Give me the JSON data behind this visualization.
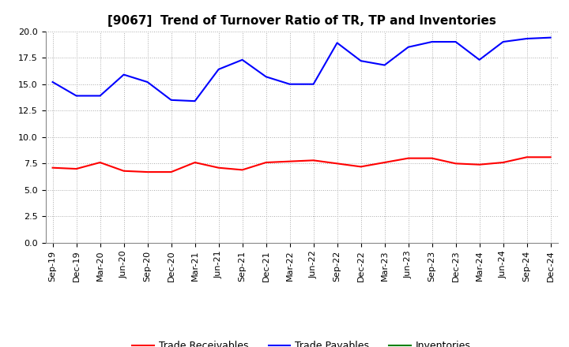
{
  "title": "[9067]  Trend of Turnover Ratio of TR, TP and Inventories",
  "x_labels": [
    "Sep-19",
    "Dec-19",
    "Mar-20",
    "Jun-20",
    "Sep-20",
    "Dec-20",
    "Mar-21",
    "Jun-21",
    "Sep-21",
    "Dec-21",
    "Mar-22",
    "Jun-22",
    "Sep-22",
    "Dec-22",
    "Mar-23",
    "Jun-23",
    "Sep-23",
    "Dec-23",
    "Mar-24",
    "Jun-24",
    "Sep-24",
    "Dec-24"
  ],
  "trade_receivables": [
    7.1,
    7.0,
    7.6,
    6.8,
    6.7,
    6.7,
    7.6,
    7.1,
    6.9,
    7.6,
    7.7,
    7.8,
    7.5,
    7.2,
    7.6,
    8.0,
    8.0,
    7.5,
    7.4,
    7.6,
    8.1,
    8.1
  ],
  "trade_payables": [
    15.2,
    13.9,
    13.9,
    15.9,
    15.2,
    13.5,
    13.4,
    16.4,
    17.3,
    15.7,
    15.0,
    15.0,
    18.9,
    17.2,
    16.8,
    18.5,
    19.0,
    19.0,
    17.3,
    19.0,
    19.3,
    19.4
  ],
  "inventories": [
    null,
    null,
    null,
    null,
    null,
    null,
    null,
    null,
    null,
    null,
    null,
    null,
    null,
    null,
    null,
    null,
    null,
    null,
    null,
    null,
    null,
    null
  ],
  "tr_color": "#ff0000",
  "tp_color": "#0000ff",
  "inv_color": "#008000",
  "ylim": [
    0.0,
    20.0
  ],
  "yticks": [
    0.0,
    2.5,
    5.0,
    7.5,
    10.0,
    12.5,
    15.0,
    17.5,
    20.0
  ],
  "bg_color": "#ffffff",
  "grid_color": "#aaaaaa",
  "title_fontsize": 11,
  "tick_fontsize": 8,
  "legend_fontsize": 9
}
